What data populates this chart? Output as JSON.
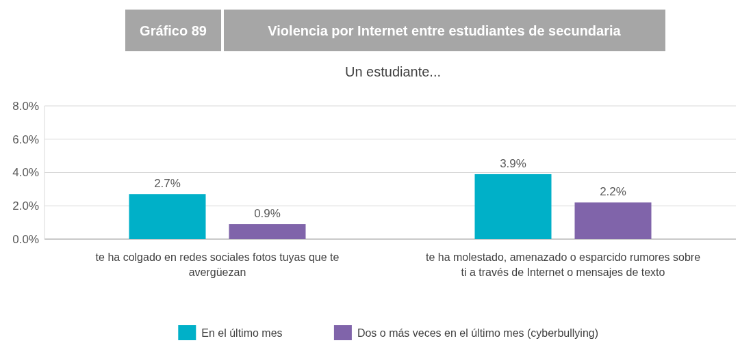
{
  "chart_data": {
    "type": "bar",
    "title": "Violencia por Internet entre estudiantes de secundaria",
    "subtitle": "Un estudiante...",
    "annotations": [
      "Gráfico 89"
    ],
    "categories": [
      "te ha colgado en redes sociales fotos tuyas que te avergüezan",
      "te ha molestado, amenazado o esparcido rumores sobre ti a través de Internet o mensajes de texto"
    ],
    "series": [
      {
        "name": "En el último mes",
        "color": "#00b0c8",
        "values": [
          2.7,
          3.9
        ],
        "value_labels": [
          "2.7%",
          "3.9%"
        ]
      },
      {
        "name": "Dos o más veces en el último mes (cyberbullying)",
        "color": "#8064aa",
        "values": [
          0.9,
          2.2
        ],
        "value_labels": [
          "0.9%",
          "2.2%"
        ]
      }
    ],
    "ylim": [
      0,
      8
    ],
    "yticks": [
      {
        "value": 0,
        "label": "0.0%"
      },
      {
        "value": 2,
        "label": "2.0%"
      },
      {
        "value": 4,
        "label": "4.0%"
      },
      {
        "value": 6,
        "label": "6.0%"
      },
      {
        "value": 8,
        "label": "8.0%"
      }
    ],
    "grid": "y",
    "legend": "bottom"
  }
}
